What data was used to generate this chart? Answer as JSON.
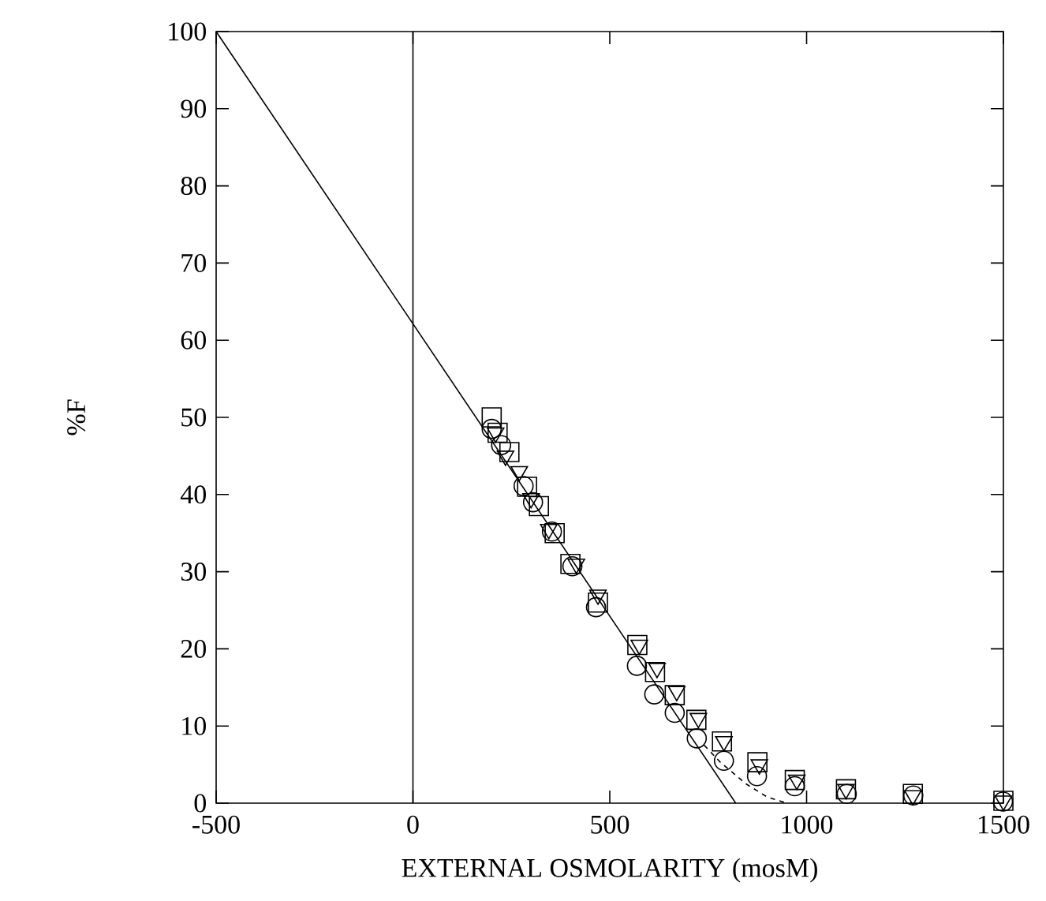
{
  "chart_data": {
    "type": "scatter",
    "xlabel": "EXTERNAL OSMOLARITY (mosM)",
    "ylabel": "%F",
    "xlim": [
      -500,
      1500
    ],
    "ylim": [
      0,
      100
    ],
    "xticks": [
      -500,
      0,
      500,
      1000,
      1500
    ],
    "yticks": [
      0,
      10,
      20,
      30,
      40,
      50,
      60,
      70,
      80,
      90,
      100
    ],
    "grid": false,
    "ref_lines": [
      {
        "axis": "x",
        "value": 0,
        "color": "#000000"
      }
    ],
    "series": [
      {
        "marker": "circle",
        "color": "#000000",
        "x": [
          200,
          224,
          281,
          305,
          353,
          405,
          465,
          569,
          613,
          665,
          721,
          790,
          874,
          970,
          1102,
          1271,
          1499
        ],
        "values": [
          48.5,
          46.4,
          41.1,
          39,
          35.2,
          30.7,
          25.4,
          17.8,
          14.1,
          11.7,
          8.4,
          5.5,
          3.5,
          2.2,
          1.2,
          1.0,
          0.2
        ]
      },
      {
        "marker": "square",
        "color": "#000000",
        "x": [
          200,
          215,
          245,
          290,
          320,
          360,
          400,
          470,
          570,
          615,
          665,
          720,
          785,
          875,
          970,
          1100,
          1270,
          1500
        ],
        "values": [
          50,
          48,
          45.5,
          41,
          38.5,
          35,
          31,
          26,
          20.5,
          17,
          14,
          10.8,
          8,
          5.3,
          3,
          1.8,
          1.2,
          0.3
        ]
      },
      {
        "marker": "triangle",
        "color": "#000000",
        "x": [
          210,
          235,
          270,
          300,
          345,
          415,
          470,
          575,
          620,
          670,
          725,
          790,
          880,
          975,
          1100,
          1270,
          1500
        ],
        "values": [
          48,
          45,
          43,
          39.5,
          35.5,
          31,
          27,
          20.5,
          17.5,
          14.5,
          11,
          8,
          5,
          3,
          1.8,
          1,
          0.3
        ]
      },
      {
        "type": "line",
        "marker": "none",
        "line_style": "solid",
        "color": "#000000",
        "x": [
          -500,
          820
        ],
        "values": [
          100,
          0
        ]
      },
      {
        "type": "line",
        "marker": "none",
        "line_style": "dashed",
        "color": "#000000",
        "x": [
          740,
          781,
          846,
          900,
          950
        ],
        "values": [
          7.5,
          5.3,
          2.5,
          0.8,
          0
        ]
      }
    ]
  }
}
